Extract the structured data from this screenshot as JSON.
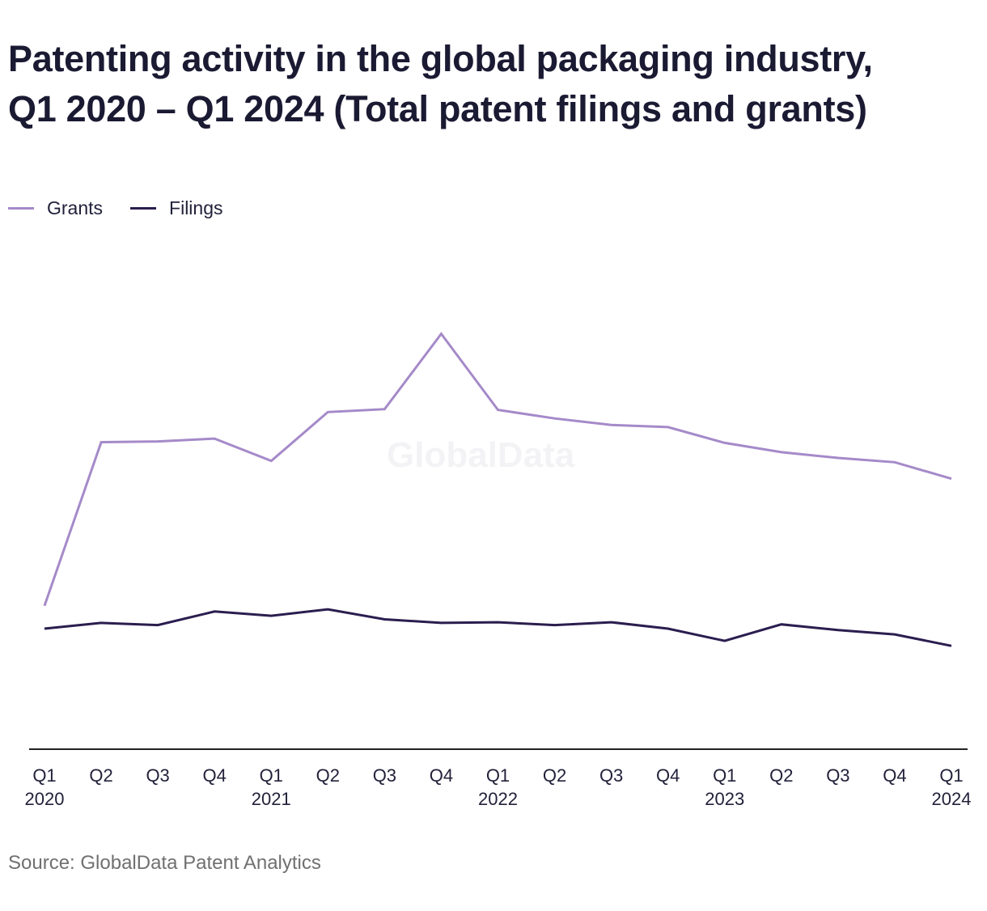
{
  "title_lines": [
    "Patenting activity in the global packaging industry,",
    "Q1 2020 – Q1 2024 (Total patent filings and grants)"
  ],
  "watermark": "GlobalData",
  "source": "Source: GlobalData Patent Analytics",
  "colors": {
    "grants": "#a58ac9",
    "filings": "#2b1d4f",
    "axis": "#222222",
    "text": "#1b1a33"
  },
  "chart_data": {
    "type": "line",
    "title": "Patenting activity in the global packaging industry, Q1 2020 – Q1 2024 (Total patent filings and grants)",
    "categories": [
      "Q1 2020",
      "Q2",
      "Q3",
      "Q4",
      "Q1 2021",
      "Q2",
      "Q3",
      "Q4",
      "Q1 2022",
      "Q2",
      "Q3",
      "Q4",
      "Q1 2023",
      "Q2",
      "Q3",
      "Q4",
      "Q1 2024"
    ],
    "tick_labels": [
      [
        "Q1",
        "2020"
      ],
      [
        "Q2",
        ""
      ],
      [
        "Q3",
        ""
      ],
      [
        "Q4",
        ""
      ],
      [
        "Q1",
        "2021"
      ],
      [
        "Q2",
        ""
      ],
      [
        "Q3",
        ""
      ],
      [
        "Q4",
        ""
      ],
      [
        "Q1",
        "2022"
      ],
      [
        "Q2",
        ""
      ],
      [
        "Q3",
        ""
      ],
      [
        "Q4",
        ""
      ],
      [
        "Q1",
        "2023"
      ],
      [
        "Q2",
        ""
      ],
      [
        "Q3",
        ""
      ],
      [
        "Q4",
        ""
      ],
      [
        "Q1",
        "2024"
      ]
    ],
    "series": [
      {
        "name": "Grants",
        "values": [
          3800,
          6080,
          6090,
          6130,
          5820,
          6500,
          6540,
          7590,
          6530,
          6410,
          6320,
          6290,
          6070,
          5940,
          5860,
          5800,
          5570
        ]
      },
      {
        "name": "Filings",
        "values": [
          3480,
          3560,
          3530,
          3720,
          3660,
          3750,
          3610,
          3560,
          3570,
          3530,
          3570,
          3480,
          3310,
          3540,
          3460,
          3400,
          3240
        ]
      }
    ],
    "ylim": [
      1800,
      8860
    ],
    "y_axis_visible": false,
    "grid": false,
    "legend": "top-left",
    "xlabel": "",
    "ylabel": ""
  }
}
